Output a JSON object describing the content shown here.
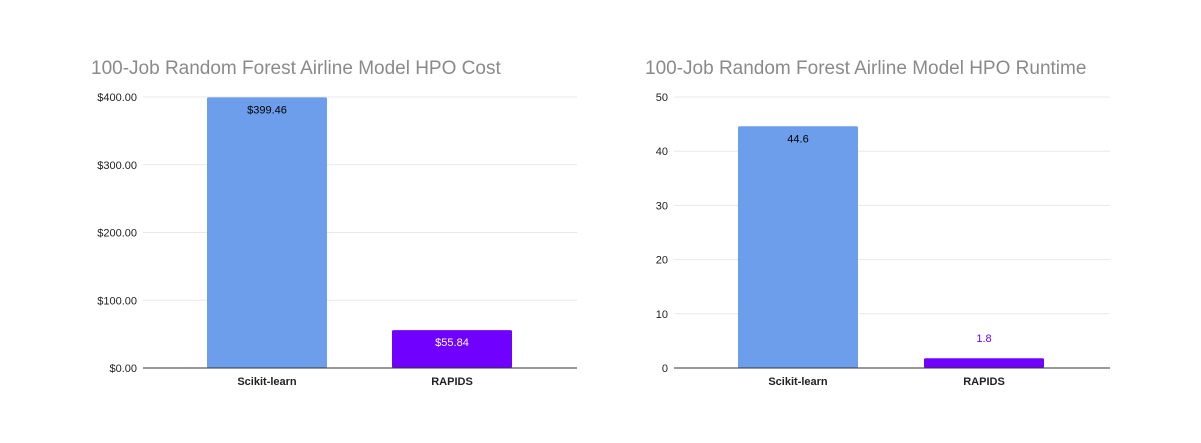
{
  "chart_data": [
    {
      "type": "bar",
      "title": "100-Job Random Forest Airline Model HPO Cost",
      "categories": [
        "Scikit-learn",
        "RAPIDS"
      ],
      "values": [
        399.46,
        55.84
      ],
      "data_labels": [
        "$399.46",
        "$55.84"
      ],
      "colors": [
        "#6d9eeb",
        "#7000ff"
      ],
      "label_colors": [
        "#000000",
        "#ffffff"
      ],
      "label_position": [
        "inside",
        "inside"
      ],
      "yticks": [
        0,
        100,
        200,
        300,
        400
      ],
      "ytick_labels": [
        "$0.00",
        "$100.00",
        "$200.00",
        "$300.00",
        "$400.00"
      ],
      "ylim": [
        0,
        400
      ],
      "xlabel": "",
      "ylabel": "",
      "grid": true
    },
    {
      "type": "bar",
      "title": "100-Job Random Forest Airline Model HPO Runtime",
      "categories": [
        "Scikit-learn",
        "RAPIDS"
      ],
      "values": [
        44.6,
        1.8
      ],
      "data_labels": [
        "44.6",
        "1.8"
      ],
      "colors": [
        "#6d9eeb",
        "#7000ff"
      ],
      "label_colors": [
        "#000000",
        "#7000ff"
      ],
      "label_position": [
        "inside",
        "above"
      ],
      "yticks": [
        0,
        10,
        20,
        30,
        40,
        50
      ],
      "ytick_labels": [
        "0",
        "10",
        "20",
        "30",
        "40",
        "50"
      ],
      "ylim": [
        0,
        50
      ],
      "xlabel": "",
      "ylabel": "",
      "grid": true
    }
  ]
}
